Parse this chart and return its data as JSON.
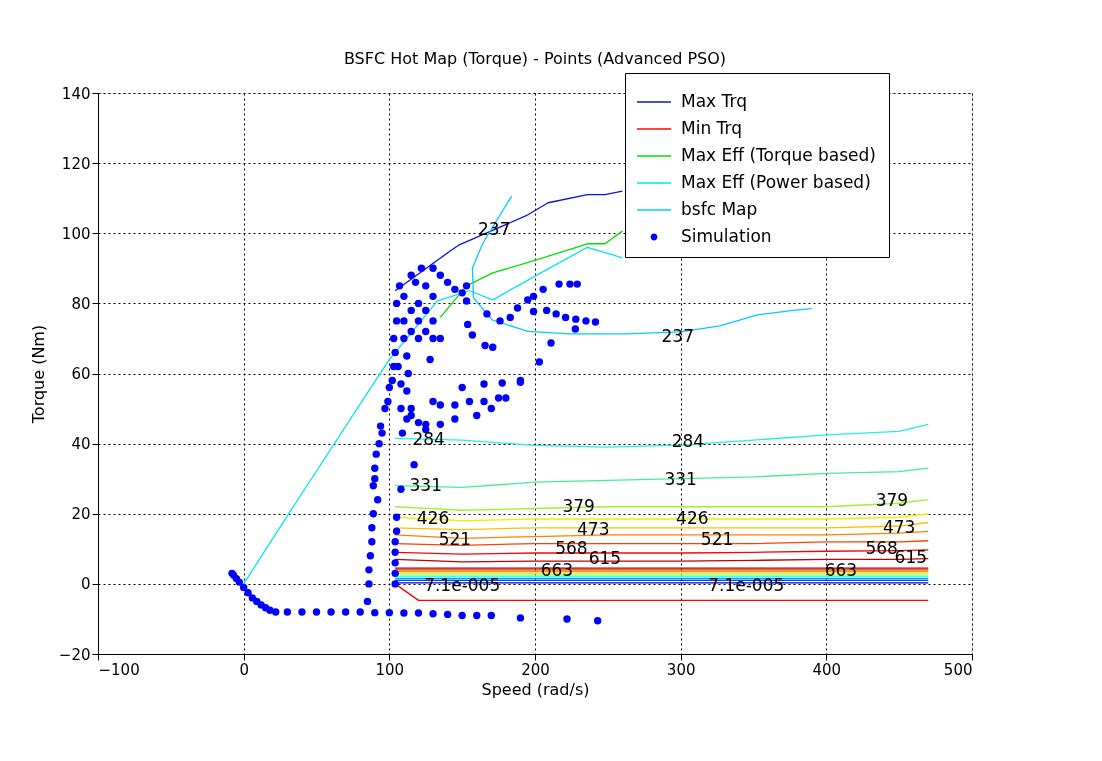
{
  "chart_data": {
    "type": "line",
    "title": "BSFC Hot Map (Torque) - Points (Advanced PSO)",
    "xlabel": "Speed (rad/s)",
    "ylabel": "Torque (Nm)",
    "xlim": [
      -100,
      500
    ],
    "xticks": [
      -100,
      0,
      100,
      200,
      300,
      400,
      500
    ],
    "ylim": [
      -20,
      140
    ],
    "yticks": [
      -20,
      0,
      20,
      40,
      60,
      80,
      100,
      120,
      140
    ],
    "grid": true,
    "legend": "top right",
    "series": [
      {
        "name": "Max Trq",
        "color": "#0a14d2",
        "type": "line",
        "x": [
          104,
          142,
          148,
          194,
          209,
          236,
          248,
          260
        ],
        "values": [
          83.6,
          95,
          96.7,
          105,
          108.7,
          111,
          111,
          112
        ]
      },
      {
        "name": "Min Trq",
        "color": "#ff0000",
        "type": "line",
        "x": [
          104,
          120,
          200,
          300,
          400,
          470
        ],
        "values": [
          0,
          -4.7,
          -4.7,
          -4.7,
          -4.7,
          -4.7
        ]
      },
      {
        "name": "Max Eff (Torque based)",
        "color": "#00e000",
        "type": "line",
        "x": [
          135,
          153,
          171,
          201,
          236,
          248,
          260
        ],
        "values": [
          76,
          85,
          88.7,
          92.4,
          97,
          97,
          100.6
        ]
      },
      {
        "name": "Max Eff (Power based)",
        "color": "#00e5ee",
        "type": "line",
        "x": [
          0,
          34,
          100,
          133,
          155,
          171,
          201,
          236,
          260
        ],
        "values": [
          0,
          22,
          64,
          80.7,
          83.6,
          81,
          88,
          96,
          93
        ]
      },
      {
        "name": "bsfc Map",
        "color": "#00ccff",
        "type": "line",
        "x": [
          184,
          164,
          157,
          157.5,
          157.7,
          170.6,
          195,
          224,
          261.6,
          299.7,
          327,
          352.6,
          377,
          390
        ],
        "values": [
          110.6,
          97,
          90,
          85,
          81.6,
          75.3,
          72,
          71.3,
          71.3,
          71.9,
          73.6,
          76.7,
          78,
          78.5
        ]
      },
      {
        "color": "#20f0e0",
        "type": "line",
        "x": [
          104,
          150,
          200,
          250,
          300,
          350,
          400,
          450,
          470
        ],
        "values": [
          41.5,
          41,
          39.5,
          39,
          39.6,
          41,
          42.5,
          43.5,
          45.5
        ]
      },
      {
        "color": "#40f090",
        "type": "line",
        "x": [
          104,
          150,
          200,
          250,
          300,
          350,
          400,
          450,
          470
        ],
        "values": [
          28,
          27.5,
          29,
          29.5,
          30,
          30.5,
          31.5,
          32,
          33
        ]
      },
      {
        "color": "#a0f030",
        "type": "line",
        "x": [
          104,
          150,
          200,
          250,
          300,
          350,
          400,
          450,
          470
        ],
        "values": [
          22,
          21,
          21.5,
          22,
          22,
          22,
          22,
          23,
          24
        ]
      },
      {
        "color": "#f0f000",
        "type": "line",
        "x": [
          104,
          150,
          200,
          250,
          300,
          350,
          400,
          450,
          470
        ],
        "values": [
          19,
          18,
          18.5,
          18.5,
          18.5,
          18.5,
          18.5,
          19,
          20
        ]
      },
      {
        "color": "#ffc000",
        "type": "line",
        "x": [
          104,
          150,
          200,
          250,
          300,
          350,
          400,
          450,
          470
        ],
        "values": [
          16,
          15.5,
          16,
          16,
          16,
          16,
          16,
          16.5,
          17.5
        ]
      },
      {
        "color": "#ff8000",
        "type": "line",
        "x": [
          104,
          150,
          200,
          250,
          300,
          350,
          400,
          450,
          470
        ],
        "values": [
          14,
          13,
          13.5,
          14,
          14,
          14,
          14,
          14.5,
          15
        ]
      },
      {
        "color": "#ff4000",
        "type": "line",
        "x": [
          104,
          150,
          200,
          250,
          300,
          350,
          400,
          450,
          470
        ],
        "values": [
          11.5,
          11,
          11.5,
          11.5,
          11.5,
          11.5,
          12,
          12,
          12.3
        ]
      },
      {
        "color": "#ff0000",
        "type": "line",
        "x": [
          104,
          150,
          200,
          250,
          300,
          350,
          400,
          450,
          470
        ],
        "values": [
          9,
          8.5,
          8.8,
          8.8,
          8.8,
          9,
          9.3,
          9.5,
          9.7
        ]
      },
      {
        "color": "#c00000",
        "type": "line",
        "x": [
          104,
          150,
          200,
          250,
          300,
          350,
          400,
          450,
          470
        ],
        "values": [
          7,
          6.3,
          6.5,
          6.5,
          6.5,
          6.7,
          7,
          7,
          7.2
        ]
      },
      {
        "color": "#a00000",
        "type": "line",
        "x": [
          104,
          470
        ],
        "values": [
          4.5,
          4.5
        ]
      },
      {
        "color": "#ff2000",
        "type": "line",
        "x": [
          104,
          470
        ],
        "values": [
          4,
          4
        ]
      },
      {
        "color": "#ff9000",
        "type": "line",
        "x": [
          104,
          470
        ],
        "values": [
          3.5,
          3.5
        ]
      },
      {
        "color": "#f0f000",
        "type": "line",
        "x": [
          104,
          470
        ],
        "values": [
          3,
          3
        ]
      },
      {
        "color": "#80ff80",
        "type": "line",
        "x": [
          104,
          470
        ],
        "values": [
          2.5,
          2.5
        ]
      },
      {
        "color": "#00ffff",
        "type": "line",
        "x": [
          104,
          470
        ],
        "values": [
          2,
          2
        ]
      },
      {
        "color": "#00a0ff",
        "type": "line",
        "x": [
          104,
          470
        ],
        "values": [
          1.5,
          1.5
        ]
      },
      {
        "color": "#0040ff",
        "type": "line",
        "x": [
          104,
          470
        ],
        "values": [
          1,
          1
        ]
      },
      {
        "color": "#0000c0",
        "type": "line",
        "x": [
          104,
          470
        ],
        "values": [
          0.3,
          0.3
        ]
      },
      {
        "name": "Simulation",
        "color": "#0000ff",
        "type": "scatter",
        "marker": "circle",
        "x": [
          -8,
          -7,
          -5,
          -3,
          0,
          3,
          6,
          9,
          12,
          15,
          18,
          22,
          30,
          40,
          50,
          60,
          70,
          80,
          90,
          100,
          110,
          120,
          130,
          140,
          150,
          160,
          170,
          190,
          222,
          243,
          85,
          86,
          86,
          87,
          88,
          88,
          89,
          92,
          89,
          90,
          90,
          91,
          93,
          95,
          94,
          97,
          99,
          100,
          102,
          103,
          104,
          104,
          104,
          104,
          104,
          104,
          105,
          105,
          108,
          117,
          109,
          125,
          103,
          105,
          105,
          107,
          110,
          110,
          110,
          112,
          113,
          115,
          115,
          115,
          118,
          120,
          120,
          120,
          122,
          125,
          125,
          125,
          130,
          130,
          130,
          130,
          135,
          135,
          128,
          106,
          108,
          112,
          108,
          115,
          112,
          130,
          135,
          145,
          155,
          165,
          175,
          115,
          120,
          125,
          135,
          145,
          160,
          170,
          180,
          150,
          165,
          190,
          153,
          153,
          153.8,
          157,
          165.7,
          171,
          167,
          176,
          183,
          188,
          195,
          199,
          205.6,
          216.5,
          224,
          229,
          199,
          208,
          214.5,
          221,
          228,
          235,
          241.5,
          227.7,
          211,
          203,
          190,
          177.5,
          140,
          145,
          150
        ],
        "values": [
          3,
          2.5,
          1.5,
          0.5,
          -1,
          -2.5,
          -4,
          -5,
          -6,
          -6.8,
          -7.5,
          -8,
          -8,
          -8,
          -8,
          -8,
          -8,
          -8,
          -8.2,
          -8.2,
          -8.3,
          -8.3,
          -8.5,
          -8.7,
          -9,
          -9,
          -9,
          -9.7,
          -10,
          -10.5,
          -5,
          0,
          4,
          8,
          12,
          16,
          20,
          24,
          28,
          30,
          33,
          37,
          40,
          43,
          45,
          50,
          52,
          56,
          58,
          62,
          66,
          0,
          3,
          6,
          9,
          12,
          15,
          19,
          27,
          34,
          43,
          44,
          70,
          75,
          80,
          85,
          82,
          75,
          70,
          65,
          60,
          88,
          78,
          72,
          86,
          80,
          75,
          70,
          90,
          85,
          78,
          72,
          90,
          82,
          75,
          70,
          88,
          70,
          64,
          62,
          57,
          55,
          50,
          50,
          47,
          52,
          51,
          51,
          52,
          52,
          53,
          48,
          46,
          45.5,
          45.5,
          47,
          48,
          50,
          53,
          56,
          57,
          57.5,
          85,
          80.7,
          74,
          71,
          68,
          67.5,
          77,
          75,
          76,
          78.7,
          81,
          82,
          84,
          85.5,
          85.5,
          85.5,
          77.7,
          78,
          77,
          76,
          75.5,
          75,
          74.7,
          72.7,
          68.7,
          63.3,
          58,
          57.3,
          86,
          84,
          83
        ]
      }
    ],
    "annotations": [
      {
        "text": "237",
        "x": 172,
        "y": 101
      },
      {
        "text": "237",
        "x": 298,
        "y": 70.5
      },
      {
        "text": "284",
        "x": 127,
        "y": 41
      },
      {
        "text": "284",
        "x": 305,
        "y": 40.5
      },
      {
        "text": "331",
        "x": 125,
        "y": 28
      },
      {
        "text": "331",
        "x": 300,
        "y": 29.5
      },
      {
        "text": "379",
        "x": 230,
        "y": 22
      },
      {
        "text": "379",
        "x": 445,
        "y": 23.5
      },
      {
        "text": "426",
        "x": 130,
        "y": 18.5
      },
      {
        "text": "426",
        "x": 308,
        "y": 18.5
      },
      {
        "text": "473",
        "x": 240,
        "y": 15.5
      },
      {
        "text": "473",
        "x": 450,
        "y": 16
      },
      {
        "text": "521",
        "x": 145,
        "y": 12.5
      },
      {
        "text": "521",
        "x": 325,
        "y": 12.5
      },
      {
        "text": "568",
        "x": 225,
        "y": 10
      },
      {
        "text": "568",
        "x": 438,
        "y": 10
      },
      {
        "text": "615",
        "x": 248,
        "y": 7.2
      },
      {
        "text": "615",
        "x": 458,
        "y": 7.5
      },
      {
        "text": "663",
        "x": 215,
        "y": 3.8
      },
      {
        "text": "663",
        "x": 410,
        "y": 3.8
      },
      {
        "text": "7.1e-005",
        "x": 150,
        "y": -0.5
      },
      {
        "text": "7.1e-005",
        "x": 345,
        "y": -0.5
      }
    ]
  }
}
